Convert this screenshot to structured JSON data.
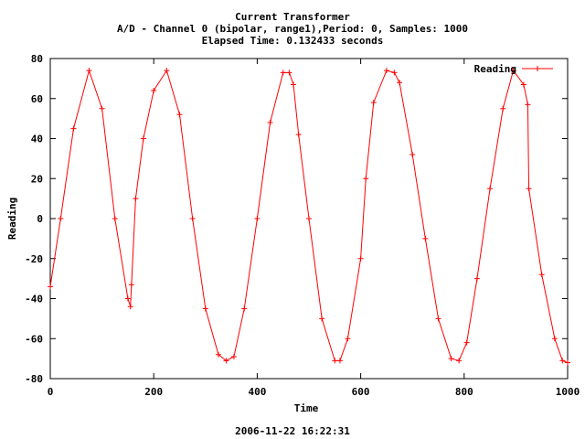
{
  "chart_data": {
    "type": "line",
    "title_lines": [
      "Current Transformer",
      "A/D - Channel 0 (bipolar, range1),Period: 0, Samples: 1000",
      "Elapsed Time: 0.132433 seconds"
    ],
    "xlabel": "Time",
    "ylabel": "Reading",
    "xlim": [
      0,
      1000
    ],
    "ylim": [
      -80,
      80
    ],
    "xticks": [
      0,
      200,
      400,
      600,
      800,
      1000
    ],
    "yticks": [
      -80,
      -60,
      -40,
      -20,
      0,
      20,
      40,
      60,
      80
    ],
    "legend_position": "top-right",
    "series": [
      {
        "name": "Reading",
        "color": "#ff0000",
        "marker": "plus",
        "x": [
          0,
          20,
          45,
          75,
          100,
          125,
          150,
          155,
          157,
          165,
          180,
          200,
          225,
          250,
          275,
          300,
          325,
          340,
          355,
          375,
          400,
          425,
          450,
          462,
          470,
          480,
          500,
          525,
          550,
          560,
          575,
          600,
          610,
          625,
          650,
          665,
          675,
          700,
          725,
          750,
          775,
          790,
          805,
          825,
          850,
          875,
          895,
          915,
          923,
          925,
          950,
          975,
          990,
          1000
        ],
        "y": [
          -34,
          0,
          45,
          74,
          55,
          0,
          -40,
          -44,
          -33,
          10,
          40,
          64,
          74,
          52,
          0,
          -45,
          -68,
          -71,
          -69,
          -45,
          0,
          48,
          73,
          73,
          67,
          42,
          0,
          -50,
          -71,
          -71,
          -60,
          -20,
          20,
          58,
          74,
          73,
          68,
          32,
          -10,
          -50,
          -70,
          -71,
          -62,
          -30,
          15,
          55,
          74,
          67,
          57,
          15,
          -28,
          -60,
          -71,
          -72
        ]
      }
    ]
  },
  "footer": "2006-11-22 16:22:31"
}
